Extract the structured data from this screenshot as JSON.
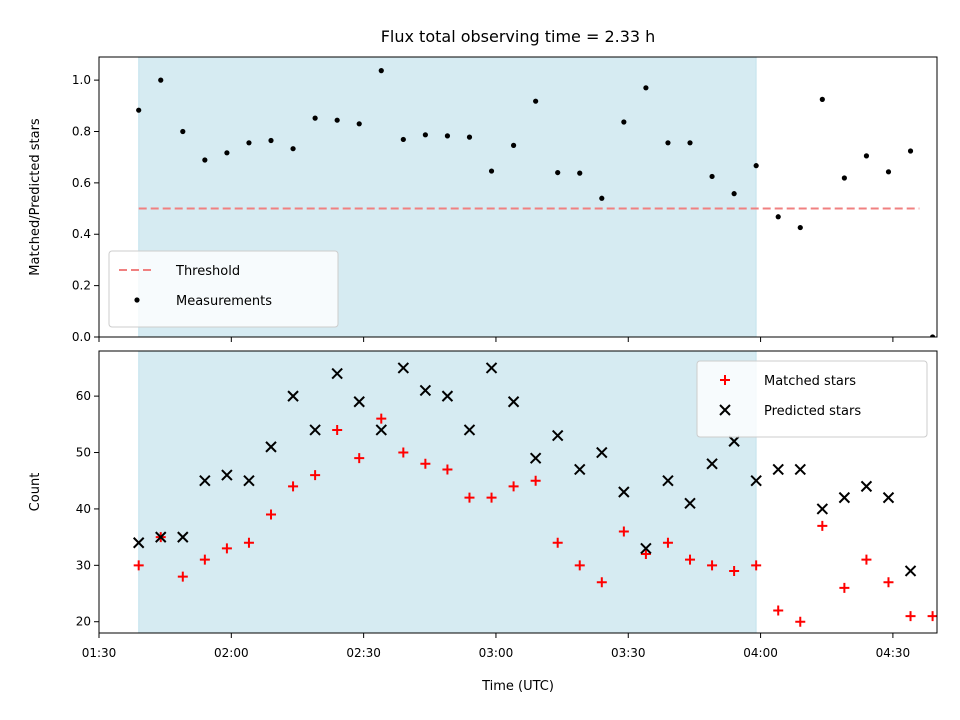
{
  "chart_data": {
    "title": "Flux total observing time = 2.33 h",
    "xlabel": "Time (UTC)",
    "xlim": [
      "01:30",
      "04:40"
    ],
    "x_ticks": [
      "01:30",
      "02:00",
      "02:30",
      "03:00",
      "03:30",
      "04:00",
      "04:30"
    ],
    "observing_window": {
      "start": "01:39",
      "end": "03:59",
      "color": "#add8e6"
    },
    "panels": [
      {
        "type": "scatter",
        "ylabel": "Matched/Predicted stars",
        "ylim": [
          0,
          1.09
        ],
        "y_ticks": [
          "0.0",
          "0.2",
          "0.4",
          "0.6",
          "0.8",
          "1.0"
        ],
        "legend_position": "lower-left",
        "threshold": {
          "name": "Threshold",
          "value": 0.5,
          "x_start": "01:39",
          "x_end": "04:36",
          "color": "#f08080"
        },
        "series": [
          {
            "name": "Measurements",
            "color": "#000000",
            "marker": "dot",
            "x": [
              "01:39",
              "01:44",
              "01:49",
              "01:54",
              "01:59",
              "02:04",
              "02:09",
              "02:14",
              "02:19",
              "02:24",
              "02:29",
              "02:34",
              "02:39",
              "02:44",
              "02:49",
              "02:54",
              "02:59",
              "03:04",
              "03:09",
              "03:14",
              "03:19",
              "03:24",
              "03:29",
              "03:34",
              "03:39",
              "03:44",
              "03:49",
              "03:54",
              "03:59",
              "04:04",
              "04:09",
              "04:14",
              "04:19",
              "04:24",
              "04:29",
              "04:34",
              "04:39"
            ],
            "y": [
              0.883,
              1.0,
              0.8,
              0.689,
              0.717,
              0.756,
              0.765,
              0.733,
              0.852,
              0.844,
              0.83,
              1.037,
              0.769,
              0.787,
              0.783,
              0.778,
              0.646,
              0.746,
              0.918,
              0.64,
              0.638,
              0.54,
              0.837,
              0.97,
              0.756,
              0.756,
              0.625,
              0.558,
              0.667,
              0.468,
              0.426,
              0.925,
              0.619,
              0.705,
              0.643,
              0.724,
              0.0
            ]
          }
        ]
      },
      {
        "type": "scatter",
        "ylabel": "Count",
        "ylim": [
          18,
          68
        ],
        "y_ticks": [
          "20",
          "30",
          "40",
          "50",
          "60"
        ],
        "legend_position": "top-right",
        "series": [
          {
            "name": "Matched stars",
            "color": "#ff0000",
            "marker": "plus",
            "x": [
              "01:39",
              "01:44",
              "01:49",
              "01:54",
              "01:59",
              "02:04",
              "02:09",
              "02:14",
              "02:19",
              "02:24",
              "02:29",
              "02:34",
              "02:39",
              "02:44",
              "02:49",
              "02:54",
              "02:59",
              "03:04",
              "03:09",
              "03:14",
              "03:19",
              "03:24",
              "03:29",
              "03:34",
              "03:39",
              "03:44",
              "03:49",
              "03:54",
              "03:59",
              "04:04",
              "04:09",
              "04:14",
              "04:19",
              "04:24",
              "04:29",
              "04:34",
              "04:39"
            ],
            "y": [
              30,
              35,
              28,
              31,
              33,
              34,
              39,
              44,
              46,
              54,
              49,
              56,
              50,
              48,
              47,
              42,
              42,
              44,
              45,
              34,
              30,
              27,
              36,
              32,
              34,
              31,
              30,
              29,
              30,
              22,
              20,
              37,
              26,
              31,
              27,
              21,
              21
            ]
          },
          {
            "name": "Predicted stars",
            "color": "#000000",
            "marker": "x",
            "x": [
              "01:39",
              "01:44",
              "01:49",
              "01:54",
              "01:59",
              "02:04",
              "02:09",
              "02:14",
              "02:19",
              "02:24",
              "02:29",
              "02:34",
              "02:39",
              "02:44",
              "02:49",
              "02:54",
              "02:59",
              "03:04",
              "03:09",
              "03:14",
              "03:19",
              "03:24",
              "03:29",
              "03:34",
              "03:39",
              "03:44",
              "03:49",
              "03:54",
              "03:59",
              "04:04",
              "04:09",
              "04:14",
              "04:19",
              "04:24",
              "04:29",
              "04:34"
            ],
            "y": [
              34,
              35,
              35,
              45,
              46,
              45,
              51,
              60,
              54,
              64,
              59,
              54,
              65,
              61,
              60,
              54,
              65,
              59,
              49,
              53,
              47,
              50,
              43,
              33,
              45,
              41,
              48,
              52,
              45,
              47,
              47,
              40,
              42,
              44,
              42,
              29
            ]
          }
        ]
      }
    ]
  }
}
